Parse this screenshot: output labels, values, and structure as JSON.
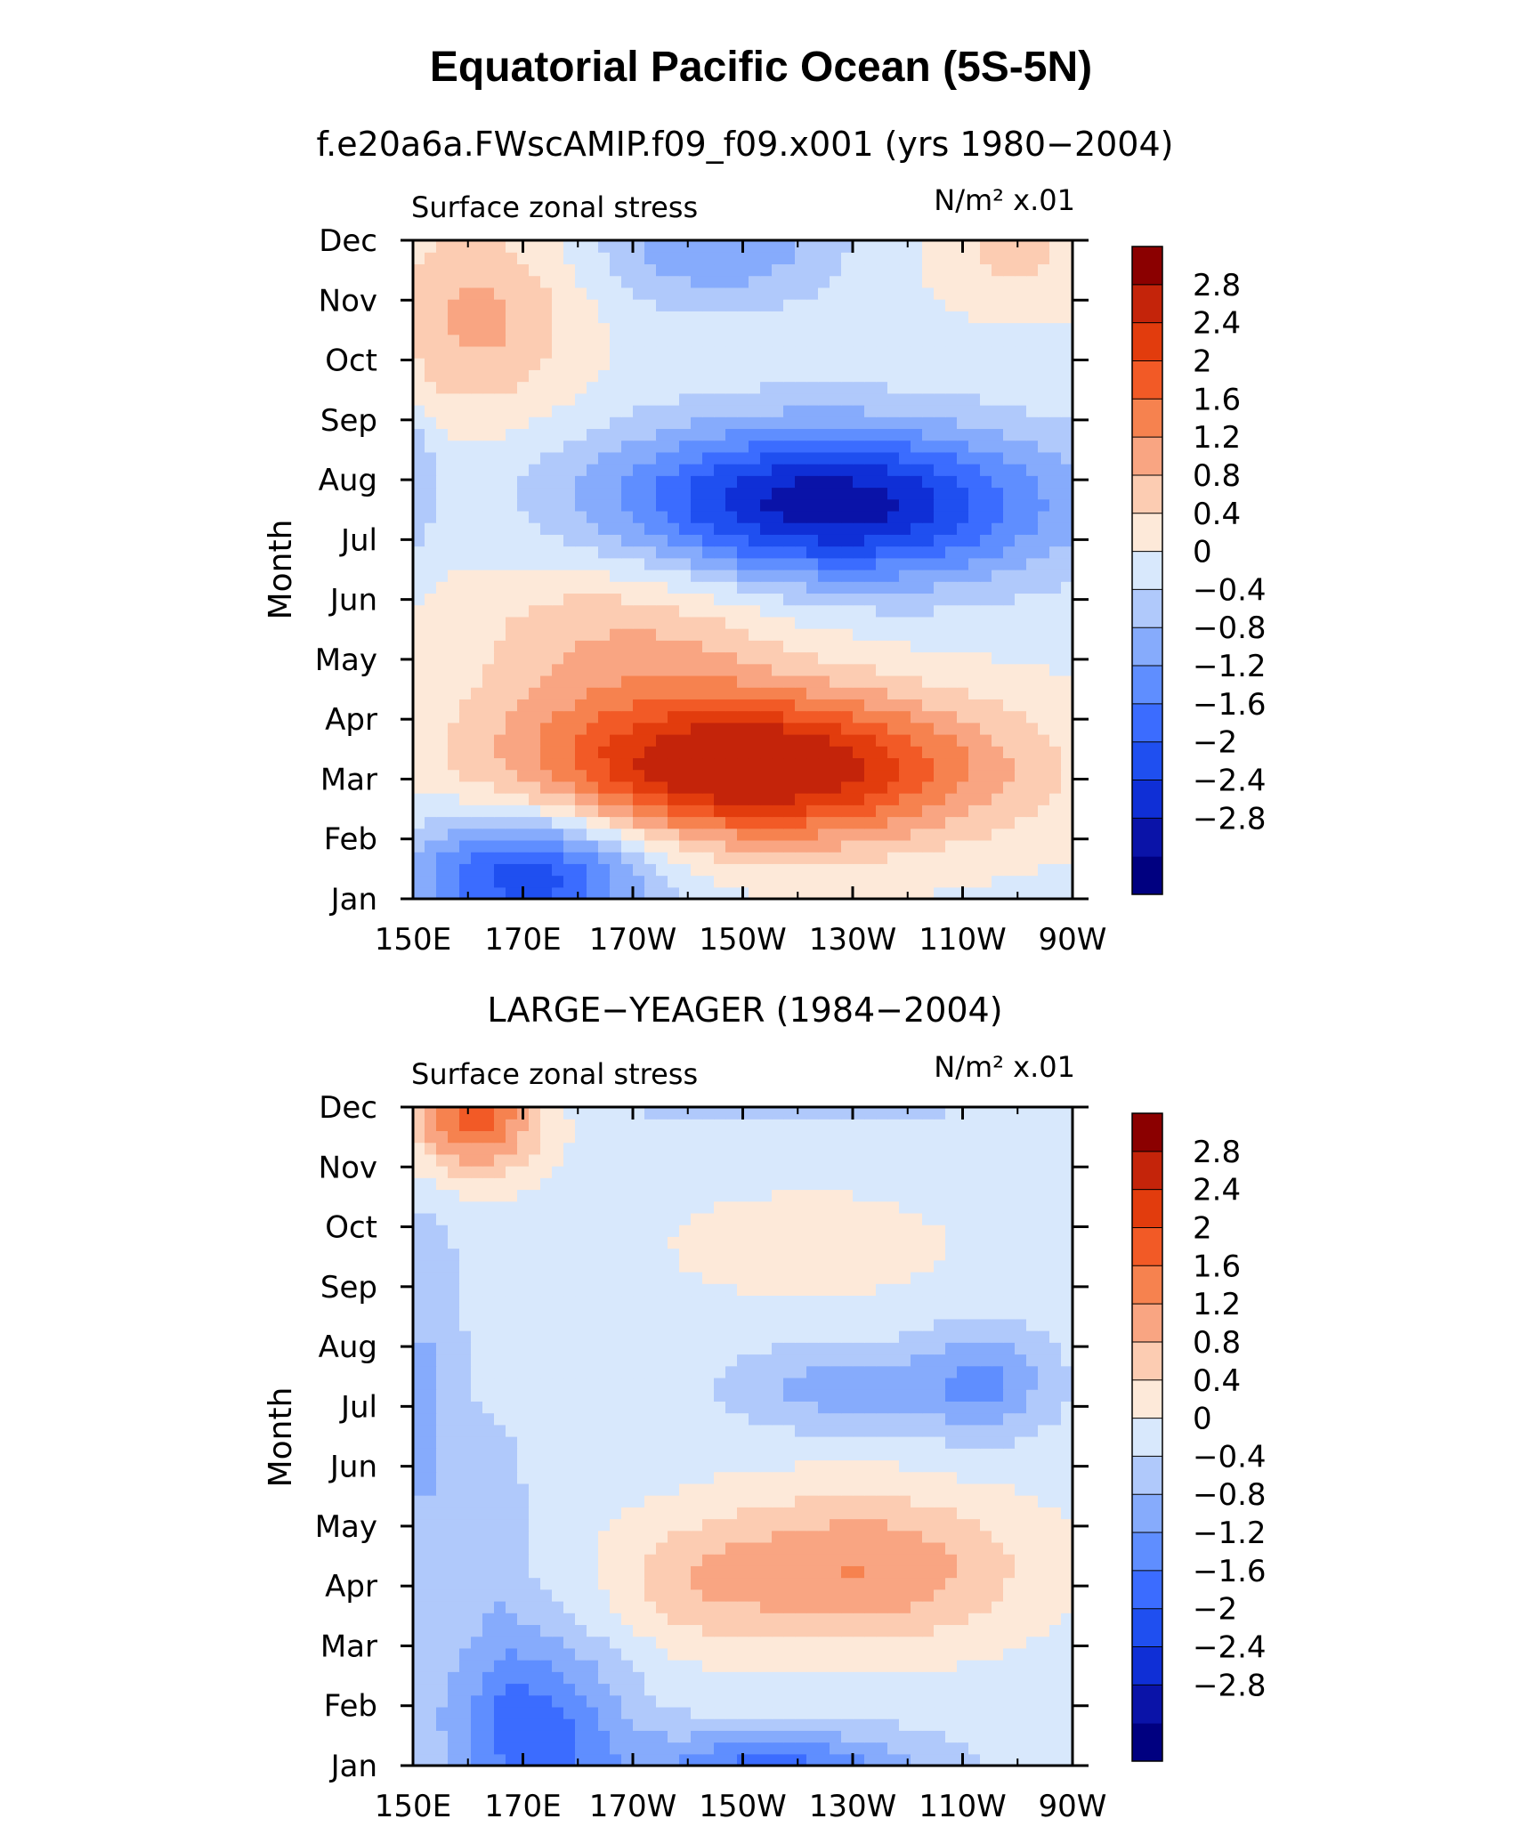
{
  "title": "Equatorial Pacific Ocean (5S-5N)",
  "colorbar": {
    "colors": [
      "#000080",
      "#0a13a8",
      "#0f2fd6",
      "#1f4ff0",
      "#3b6cff",
      "#5f8eff",
      "#86abfc",
      "#b0c9fb",
      "#d8e8fc",
      "#fde9d9",
      "#fcccb2",
      "#f9a582",
      "#f6824f",
      "#f25a26",
      "#e23c0d",
      "#c4240a",
      "#8b0000"
    ],
    "labels": [
      "2.8",
      "2.4",
      "2",
      "1.6",
      "1.2",
      "0.8",
      "0.4",
      "0",
      "−0.4",
      "−0.8",
      "−1.2",
      "−1.6",
      "−2",
      "−2.4",
      "−2.8"
    ]
  },
  "chart_data": [
    {
      "type": "heatmap",
      "title": "f.e20a6a.FWscAMIP.f09_f09.x001 (yrs 1980−2004)",
      "left_label": "Surface zonal stress",
      "right_label": "N/m² x.01",
      "ylabel": "Month",
      "x_ticks": [
        "150E",
        "170E",
        "170W",
        "150W",
        "130W",
        "110W",
        "90W"
      ],
      "y_ticks": [
        "Jan",
        "Feb",
        "Mar",
        "Apr",
        "May",
        "Jun",
        "Jul",
        "Aug",
        "Sep",
        "Oct",
        "Nov",
        "Dec"
      ],
      "x_range_deg_east": [
        150,
        270
      ],
      "levels": [
        -2.8,
        -2.4,
        -2.0,
        -1.6,
        -1.2,
        -0.8,
        -0.4,
        0,
        0.4,
        0.8,
        1.2,
        1.6,
        2.0,
        2.4,
        2.8
      ],
      "background": 0.3,
      "features": [
        {
          "lon": 212,
          "month": 2.2,
          "sx": 42,
          "sy": 1.25,
          "rot": -35,
          "amp": 3.1
        },
        {
          "lon": 225,
          "month": 6.6,
          "sx": 40,
          "sy": 1.3,
          "rot": -22,
          "amp": -3.0
        },
        {
          "lon": 171,
          "month": 0.4,
          "sx": 22,
          "sy": 1.1,
          "rot": 0,
          "amp": -2.2
        },
        {
          "lon": 162,
          "month": 9.7,
          "sx": 18,
          "sy": 1.7,
          "rot": -12,
          "amp": 1.0
        },
        {
          "lon": 205,
          "month": 11.0,
          "sx": 22,
          "sy": 1.1,
          "rot": 0,
          "amp": -1.1
        },
        {
          "lon": 260,
          "month": 10.8,
          "sx": 16,
          "sy": 0.9,
          "rot": 0,
          "amp": 0.6
        },
        {
          "lon": 150,
          "month": 7.0,
          "sx": 4,
          "sy": 1.3,
          "rot": 0,
          "amp": -0.7
        },
        {
          "lon": 190,
          "month": 4.4,
          "sx": 30,
          "sy": 1.6,
          "rot": -20,
          "amp": 0.9
        }
      ]
    },
    {
      "type": "heatmap",
      "title": "LARGE−YEAGER (1984−2004)",
      "left_label": "Surface zonal stress",
      "right_label": "N/m² x.01",
      "ylabel": "Month",
      "x_ticks": [
        "150E",
        "170E",
        "170W",
        "150W",
        "130W",
        "110W",
        "90W"
      ],
      "y_ticks": [
        "Jan",
        "Feb",
        "Mar",
        "Apr",
        "May",
        "Jun",
        "Jul",
        "Aug",
        "Sep",
        "Oct",
        "Nov",
        "Dec"
      ],
      "x_range_deg_east": [
        150,
        270
      ],
      "levels": [
        -2.8,
        -2.4,
        -2.0,
        -1.6,
        -1.2,
        -0.8,
        -0.4,
        0,
        0.4,
        0.8,
        1.2,
        1.6,
        2.0,
        2.4,
        2.8
      ],
      "background": 0.2,
      "features": [
        {
          "lon": 231,
          "month": 3.3,
          "sx": 30,
          "sy": 1.3,
          "rot": 0,
          "amp": 1.4
        },
        {
          "lon": 200,
          "month": 3.0,
          "sx": 16,
          "sy": 1.1,
          "rot": 0,
          "amp": 0.5
        },
        {
          "lon": 161,
          "month": 10.9,
          "sx": 12,
          "sy": 1.0,
          "rot": 0,
          "amp": 2.0
        },
        {
          "lon": 222,
          "month": 8.7,
          "sx": 26,
          "sy": 0.9,
          "rot": 0,
          "amp": 0.5
        },
        {
          "lon": 172,
          "month": 0.6,
          "sx": 16,
          "sy": 1.6,
          "rot": 10,
          "amp": -1.6
        },
        {
          "lon": 216,
          "month": -0.1,
          "sx": 26,
          "sy": 0.7,
          "rot": 0,
          "amp": -1.6
        },
        {
          "lon": 220,
          "month": 11.4,
          "sx": 28,
          "sy": 0.5,
          "rot": 0,
          "amp": -1.4
        },
        {
          "lon": 254,
          "month": 6.4,
          "sx": 12,
          "sy": 0.9,
          "rot": 0,
          "amp": -1.0
        },
        {
          "lon": 228,
          "month": 6.3,
          "sx": 20,
          "sy": 0.7,
          "rot": 0,
          "amp": -0.8
        },
        {
          "lon": 152,
          "month": 5.8,
          "sx": 7,
          "sy": 3.5,
          "rot": 0,
          "amp": -0.7
        },
        {
          "lon": 166,
          "month": 3.6,
          "sx": 6,
          "sy": 2.5,
          "rot": 0,
          "amp": -0.4
        }
      ]
    }
  ]
}
